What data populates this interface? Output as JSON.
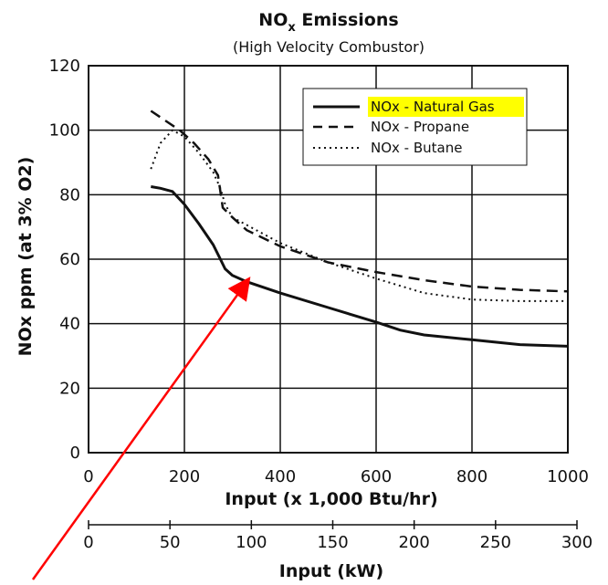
{
  "chart_data": {
    "type": "line",
    "title": {
      "prefix": "NO",
      "subscript": "x",
      "suffix": " Emissions"
    },
    "subtitle": "(High Velocity Combustor)",
    "xlabel": "Input (x 1,000 Btu/hr)",
    "ylabel": "NOx ppm (at 3% O2)",
    "secondary_xlabel": "Input (kW)",
    "xlim": [
      0,
      1000
    ],
    "ylim": [
      0,
      120
    ],
    "xticks": [
      0,
      200,
      400,
      600,
      800,
      1000
    ],
    "yticks": [
      0,
      20,
      40,
      60,
      80,
      100,
      120
    ],
    "secondary_xlim": [
      0,
      300
    ],
    "secondary_xticks": [
      0,
      50,
      100,
      150,
      200,
      250,
      300
    ],
    "grid": true,
    "legend_position": "top-right",
    "highlight_color": "#ffff00",
    "arrow_color": "#ff0000",
    "series": [
      {
        "name": "NOx - Natural Gas",
        "style": "solid",
        "highlighted": true,
        "x": [
          130,
          150,
          175,
          200,
          230,
          260,
          275,
          285,
          300,
          330,
          400,
          500,
          600,
          650,
          700,
          800,
          900,
          1000
        ],
        "y": [
          82.5,
          82,
          81,
          77,
          71,
          64.5,
          60,
          57,
          55,
          53,
          49.5,
          45,
          40.5,
          38,
          36.5,
          35,
          33.5,
          33
        ]
      },
      {
        "name": "NOx - Propane",
        "style": "dashed",
        "highlighted": false,
        "x": [
          130,
          160,
          190,
          220,
          250,
          270,
          280,
          300,
          330,
          400,
          500,
          600,
          700,
          800,
          900,
          1000
        ],
        "y": [
          106,
          103,
          100,
          96,
          91,
          86,
          76,
          73,
          69,
          64,
          59,
          56,
          53.5,
          51.5,
          50.5,
          50
        ]
      },
      {
        "name": "NOx - Butane",
        "style": "dotted",
        "highlighted": false,
        "x": [
          130,
          150,
          175,
          200,
          230,
          260,
          275,
          285,
          300,
          350,
          400,
          500,
          600,
          700,
          800,
          900,
          1000
        ],
        "y": [
          88,
          96,
          100,
          98,
          93,
          87,
          82,
          77,
          73,
          69,
          65,
          59,
          54,
          49.5,
          47.5,
          47,
          47
        ]
      }
    ],
    "annotations": [
      {
        "type": "arrow",
        "from_outside_bottom_left": true,
        "to": [
          335,
          54
        ]
      }
    ]
  }
}
